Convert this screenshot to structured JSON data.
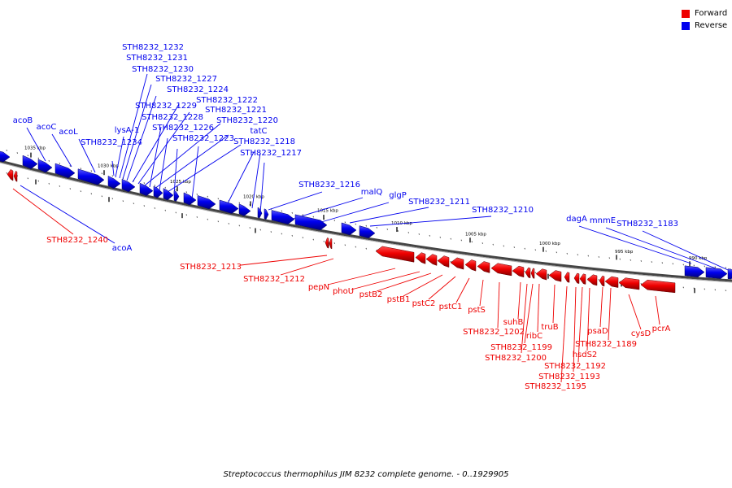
{
  "legend": {
    "forward_label": "Forward",
    "reverse_label": "Reverse",
    "forward_color": "#ee0000",
    "reverse_color": "#0000ee"
  },
  "caption": "Streptococcus thermophilus JIM 8232 complete genome. - 0..1929905",
  "scale_labels": [
    "1035 kbp",
    "1030 kbp",
    "1025 kbp",
    "1020 kbp",
    "1015 kbp",
    "1010 kbp",
    "1005 kbp",
    "1000 kbp",
    "995 kbp",
    "990 kbp"
  ],
  "reverse_gene_labels": [
    "STH8232_1232",
    "STH8232_1231",
    "STH8232_1230",
    "STH8232_1227",
    "STH8232_1224",
    "STH8232_1222",
    "STH8232_1229",
    "STH8232_1221",
    "acoB",
    "STH8232_1228",
    "STH8232_1220",
    "acoC",
    "lysA-1",
    "STH8232_1226",
    "tatC",
    "acoL",
    "STH8232_1223",
    "STH8232_1234",
    "STH8232_1218",
    "STH8232_1217",
    "STH8232_1216",
    "malQ",
    "glgP",
    "STH8232_1211",
    "STH8232_1210",
    "dagA",
    "mnmE",
    "STH8232_1183",
    "acoA"
  ],
  "forward_gene_labels": [
    "STH8232_1240",
    "STH8232_1213",
    "STH8232_1212",
    "pepN",
    "phoU",
    "pstB2",
    "pstB1",
    "pstC2",
    "pstC1",
    "pstS",
    "suhB",
    "STH8232_1202",
    "ribC",
    "STH8232_1199",
    "truB",
    "STH8232_1200",
    "psaD",
    "cysD",
    "pcrA",
    "STH8232_1189",
    "hsdS2",
    "STH8232_1192",
    "STH8232_1193",
    "STH8232_1195"
  ]
}
